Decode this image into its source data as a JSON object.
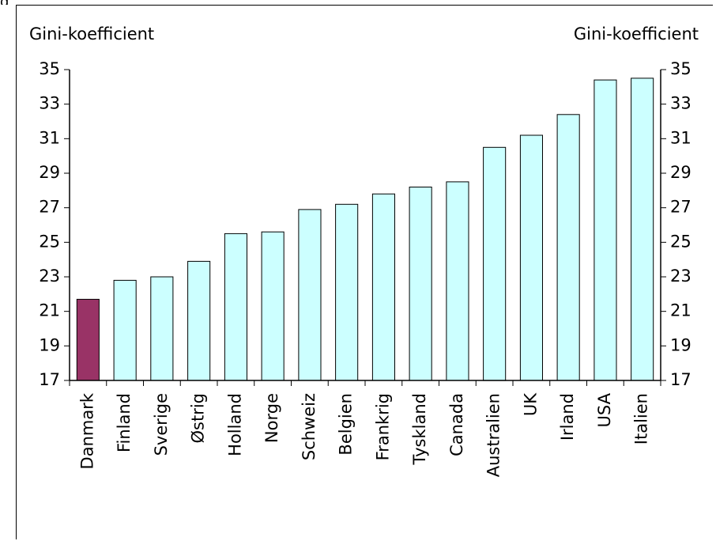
{
  "figure_fragment": "g",
  "chart_data": {
    "type": "bar",
    "ylabel_left": "Gini-koefficient",
    "ylabel_right": "Gini-koefficient",
    "ylim": [
      17,
      35
    ],
    "yticks": [
      17,
      19,
      21,
      23,
      25,
      27,
      29,
      31,
      33,
      35
    ],
    "categories": [
      "Danmark",
      "Finland",
      "Sverige",
      "Østrig",
      "Holland",
      "Norge",
      "Schweiz",
      "Belgien",
      "Frankrig",
      "Tyskland",
      "Canada",
      "Australien",
      "UK",
      "Irland",
      "USA",
      "Italien"
    ],
    "values": [
      21.7,
      22.8,
      23.0,
      23.9,
      25.5,
      25.6,
      26.9,
      27.2,
      27.8,
      28.2,
      28.5,
      30.5,
      31.2,
      32.4,
      34.4,
      34.5
    ],
    "highlight_color": "#993366",
    "bar_color": "#ccffff",
    "grid": false,
    "legend": "none"
  }
}
